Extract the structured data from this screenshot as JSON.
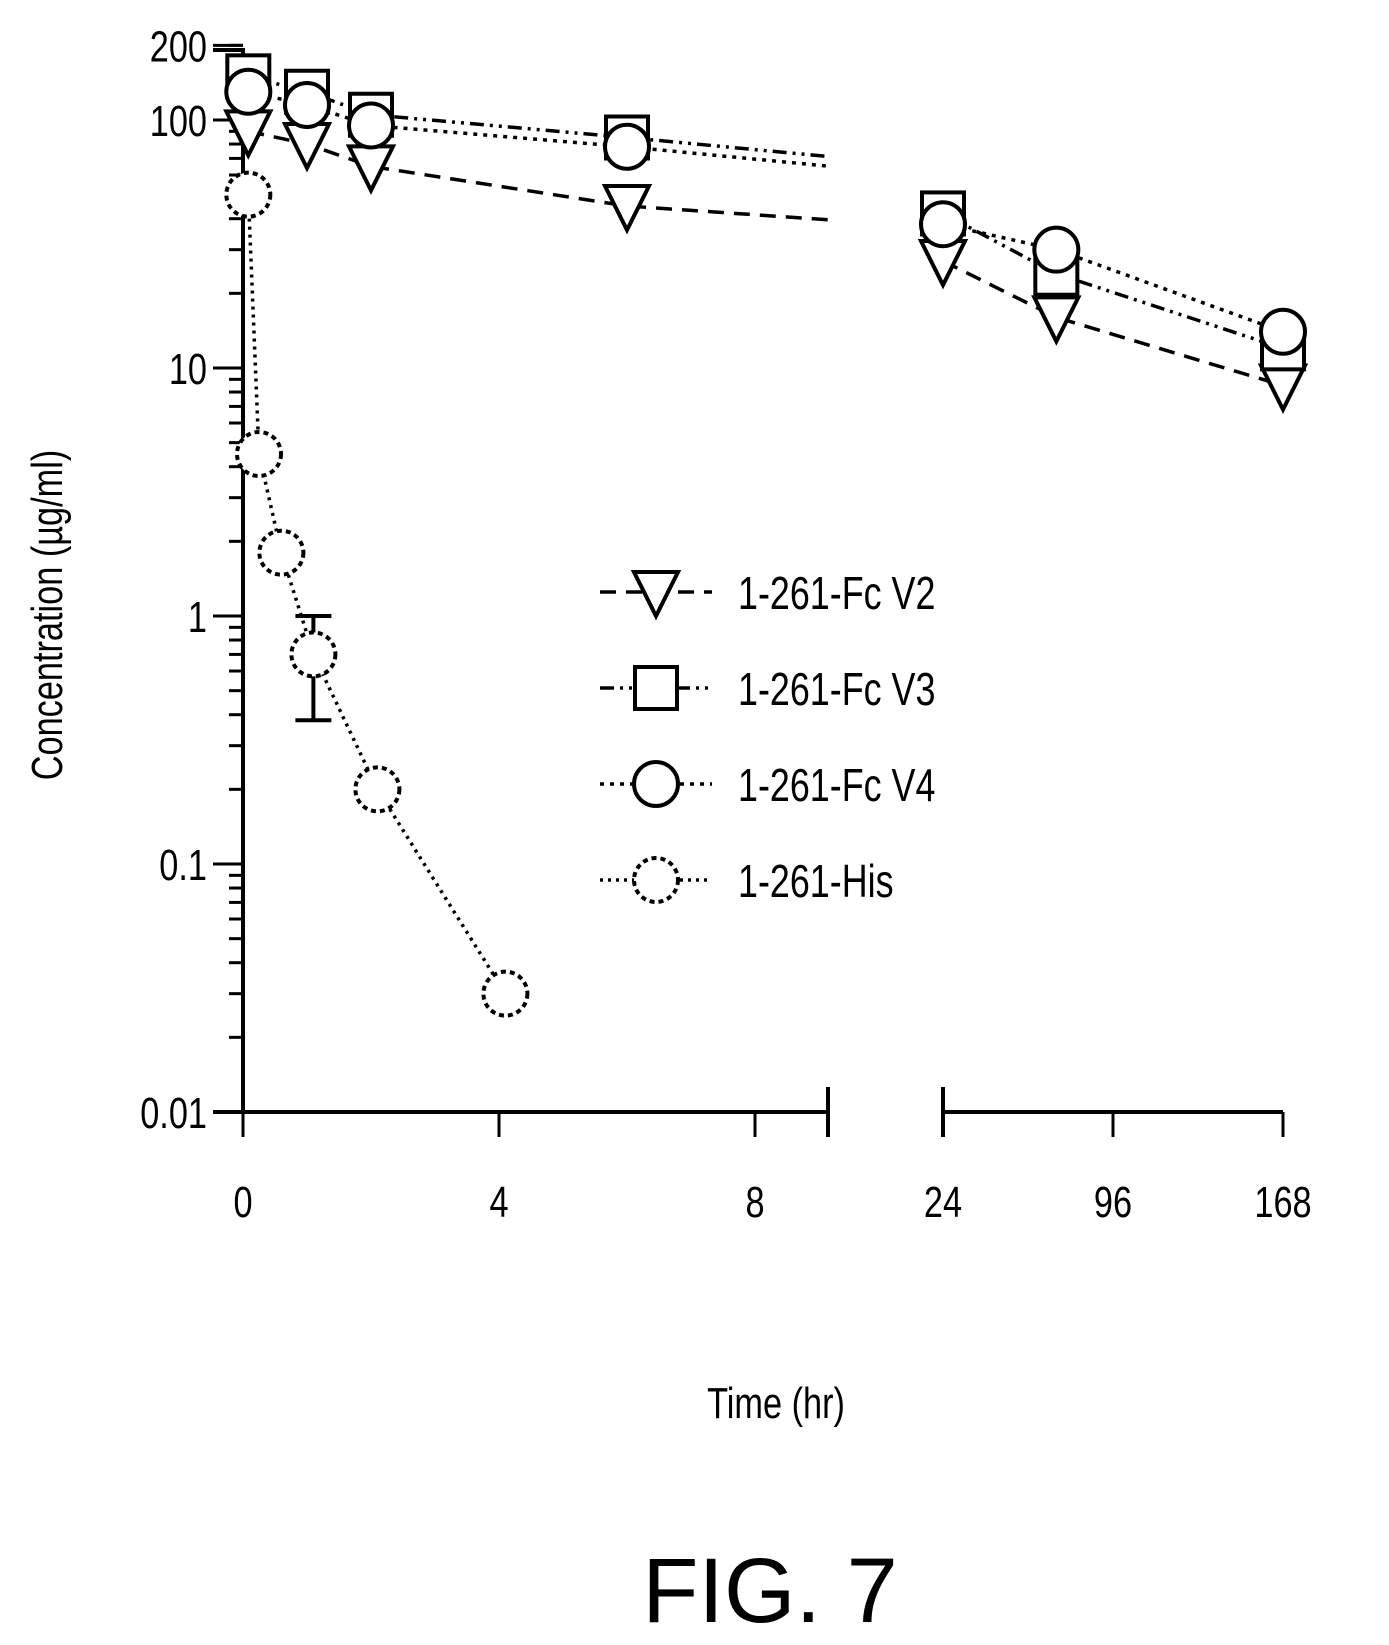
{
  "chart_data": {
    "type": "scatter",
    "title": "",
    "xlabel": "Time (hr)",
    "ylabel": "Concentration (µg/ml)",
    "y_scale": "log",
    "ylim": [
      0.01,
      200
    ],
    "y_ticks": [
      {
        "value": 0.01,
        "label": "0.01"
      },
      {
        "value": 0.1,
        "label": "0.1"
      },
      {
        "value": 1,
        "label": "1"
      },
      {
        "value": 10,
        "label": "10"
      },
      {
        "value": 100,
        "label": "100"
      },
      {
        "value": 200,
        "label": "200"
      }
    ],
    "x_axis": "broken",
    "x_ticks": [
      {
        "value": 0,
        "label": "0"
      },
      {
        "value": 4,
        "label": "4"
      },
      {
        "value": 8,
        "label": "8"
      },
      {
        "value": 24,
        "label": "24"
      },
      {
        "value": 96,
        "label": "96"
      },
      {
        "value": 168,
        "label": "168"
      }
    ],
    "grid": false,
    "legend_position": "center-right",
    "series": [
      {
        "name": "1-261-Fc V2",
        "marker": "triangle-down",
        "line_style": "dashed",
        "points": [
          {
            "x": 0.083,
            "y": 90
          },
          {
            "x": 1,
            "y": 80
          },
          {
            "x": 2,
            "y": 65
          },
          {
            "x": 6,
            "y": 45
          },
          {
            "x": 24,
            "y": 27
          },
          {
            "x": 72,
            "y": 16
          },
          {
            "x": 168,
            "y": 8.5
          }
        ]
      },
      {
        "name": "1-261-Fc V3",
        "marker": "square",
        "line_style": "dash-dot-dot",
        "points": [
          {
            "x": 0.083,
            "y": 150
          },
          {
            "x": 1,
            "y": 130
          },
          {
            "x": 2,
            "y": 105
          },
          {
            "x": 6,
            "y": 85
          },
          {
            "x": 24,
            "y": 42
          },
          {
            "x": 72,
            "y": 24
          },
          {
            "x": 168,
            "y": 12
          }
        ]
      },
      {
        "name": "1-261-Fc V4",
        "marker": "circle",
        "line_style": "dotted",
        "points": [
          {
            "x": 0.083,
            "y": 130
          },
          {
            "x": 1,
            "y": 115
          },
          {
            "x": 2,
            "y": 95
          },
          {
            "x": 6,
            "y": 78
          },
          {
            "x": 24,
            "y": 38
          },
          {
            "x": 72,
            "y": 30
          },
          {
            "x": 168,
            "y": 14
          }
        ]
      },
      {
        "name": "1-261-His",
        "marker": "circle-dashed",
        "line_style": "fine-dotted",
        "points": [
          {
            "x": 0.083,
            "y": 50
          },
          {
            "x": 0.25,
            "y": 4.5
          },
          {
            "x": 0.6,
            "y": 1.8
          },
          {
            "x": 1.1,
            "y": 0.7,
            "err_low": 0.38,
            "err_high": 1.0
          },
          {
            "x": 2.1,
            "y": 0.2
          },
          {
            "x": 4.1,
            "y": 0.03
          }
        ]
      }
    ],
    "figure_label": "FIG. 7"
  }
}
